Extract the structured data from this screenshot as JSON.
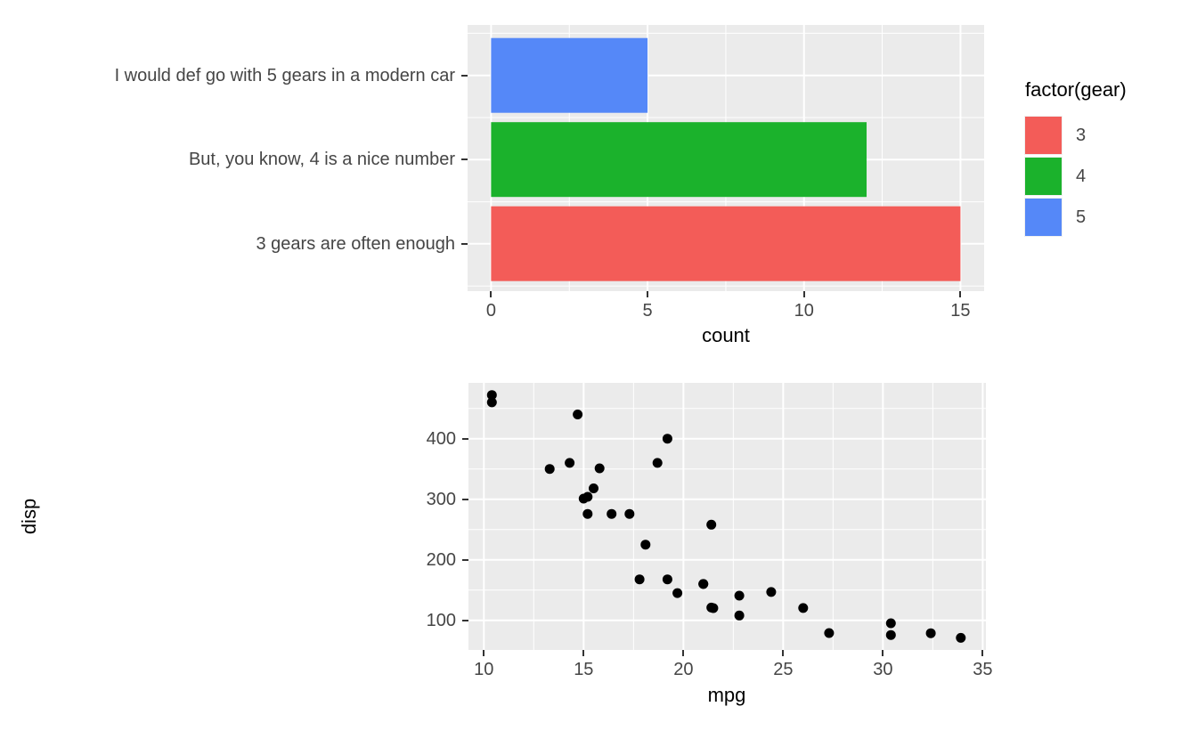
{
  "colors": {
    "background": "#FFFFFF",
    "panel_background": "#EBEBEB",
    "grid": "#FFFFFF",
    "tick_mark": "#333333",
    "tick_text": "#454545",
    "axis_title_text": "#000000",
    "point": "#000000",
    "gear3_red": "#F35C58",
    "gear4_green": "#1BB22C",
    "gear5_blue": "#5588F8"
  },
  "chart_data": [
    {
      "type": "bar",
      "orientation": "horizontal",
      "title": "",
      "xlabel": "count",
      "ylabel": "",
      "x_ticks": [
        0,
        5,
        10,
        15
      ],
      "xlim": [
        -0.75,
        15.75
      ],
      "grid": true,
      "bars": [
        {
          "category": "I would def go with 5 gears in a modern car",
          "gear": 5,
          "count": 5,
          "color": "#5588F8"
        },
        {
          "category": "But, you know, 4 is a nice number",
          "gear": 4,
          "count": 12,
          "color": "#1BB22C"
        },
        {
          "category": "3 gears are often enough",
          "gear": 3,
          "count": 15,
          "color": "#F35C58"
        }
      ],
      "legend": {
        "title": "factor(gear)",
        "position": "right",
        "entries": [
          {
            "label": "3",
            "color": "#F35C58"
          },
          {
            "label": "4",
            "color": "#1BB22C"
          },
          {
            "label": "5",
            "color": "#5588F8"
          }
        ]
      }
    },
    {
      "type": "scatter",
      "title": "",
      "xlabel": "mpg",
      "ylabel": "disp",
      "x_ticks": [
        10,
        15,
        20,
        25,
        30,
        35
      ],
      "y_ticks": [
        100,
        200,
        300,
        400
      ],
      "xlim": [
        9.225,
        35.075
      ],
      "ylim": [
        51,
        492
      ],
      "grid": true,
      "points": [
        [
          21.0,
          160
        ],
        [
          21.0,
          160
        ],
        [
          22.8,
          108
        ],
        [
          21.4,
          258
        ],
        [
          18.7,
          360
        ],
        [
          18.1,
          225
        ],
        [
          14.3,
          360
        ],
        [
          24.4,
          146.7
        ],
        [
          22.8,
          140.8
        ],
        [
          19.2,
          167.6
        ],
        [
          17.8,
          167.6
        ],
        [
          16.4,
          275.8
        ],
        [
          17.3,
          275.8
        ],
        [
          15.2,
          275.8
        ],
        [
          10.4,
          472
        ],
        [
          10.4,
          460
        ],
        [
          14.7,
          440
        ],
        [
          32.4,
          78.7
        ],
        [
          30.4,
          75.7
        ],
        [
          33.9,
          71.1
        ],
        [
          21.5,
          120.1
        ],
        [
          15.5,
          318
        ],
        [
          15.2,
          304
        ],
        [
          13.3,
          350
        ],
        [
          19.2,
          400
        ],
        [
          27.3,
          79
        ],
        [
          26.0,
          120.3
        ],
        [
          30.4,
          95.1
        ],
        [
          15.8,
          351
        ],
        [
          19.7,
          145
        ],
        [
          15.0,
          301
        ],
        [
          21.4,
          121
        ]
      ]
    }
  ]
}
